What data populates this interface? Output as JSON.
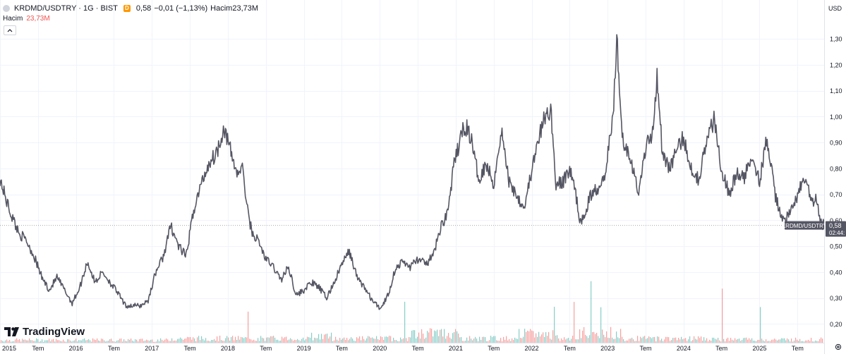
{
  "header": {
    "symbol": "KRDMD/USDTRY · 1G · BIST",
    "badge": "D",
    "last_price": "0,58",
    "change": "−0,01 (−1,13%)",
    "volume_label": "Hacim",
    "volume_value": "23,73M"
  },
  "volume_pane": {
    "label": "Hacim",
    "value": "23,73M"
  },
  "axis": {
    "unit": "USD"
  },
  "price_tag": {
    "symbol": "KRDMD/USDTRY",
    "value": "0,58",
    "countdown": "02:44:"
  },
  "watermark": "TradingView",
  "colors": {
    "line": "#555663",
    "volume_up": "#26a69a",
    "volume_down": "#ef5350",
    "grid": "#f0f3fa",
    "tag_bg": "#555663"
  },
  "chart_data": {
    "type": "line",
    "title": "KRDMD/USDTRY · 1G · BIST",
    "ylabel": "USD",
    "xlabel": "",
    "ylim": [
      0.16,
      1.36
    ],
    "xlim": [
      2015.0,
      2025.85
    ],
    "grid": true,
    "y_ticks": [
      {
        "value": 1.3,
        "label": "1,30"
      },
      {
        "value": 1.2,
        "label": "1,20"
      },
      {
        "value": 1.1,
        "label": "1,10"
      },
      {
        "value": 1.0,
        "label": "1,00"
      },
      {
        "value": 0.9,
        "label": "0,90"
      },
      {
        "value": 0.8,
        "label": "0,80"
      },
      {
        "value": 0.7,
        "label": "0,70"
      },
      {
        "value": 0.6,
        "label": "0,60"
      },
      {
        "value": 0.5,
        "label": "0,50"
      },
      {
        "value": 0.4,
        "label": "0,40"
      },
      {
        "value": 0.3,
        "label": "0,30"
      },
      {
        "value": 0.2,
        "label": "0,20"
      }
    ],
    "x_ticks": [
      {
        "value": 2015.0,
        "label": "2015"
      },
      {
        "value": 2015.5,
        "label": "Tem"
      },
      {
        "value": 2016.0,
        "label": "2016"
      },
      {
        "value": 2016.5,
        "label": "Tem"
      },
      {
        "value": 2017.0,
        "label": "2017"
      },
      {
        "value": 2017.5,
        "label": "Tem"
      },
      {
        "value": 2018.0,
        "label": "2018"
      },
      {
        "value": 2018.5,
        "label": "Tem"
      },
      {
        "value": 2019.0,
        "label": "2019"
      },
      {
        "value": 2019.5,
        "label": "Tem"
      },
      {
        "value": 2020.0,
        "label": "2020"
      },
      {
        "value": 2020.5,
        "label": "Tem"
      },
      {
        "value": 2021.0,
        "label": "2021"
      },
      {
        "value": 2021.5,
        "label": "Tem"
      },
      {
        "value": 2022.0,
        "label": "2022"
      },
      {
        "value": 2022.5,
        "label": "Tem"
      },
      {
        "value": 2023.0,
        "label": "2023"
      },
      {
        "value": 2023.5,
        "label": "Tem"
      },
      {
        "value": 2024.0,
        "label": "2024"
      },
      {
        "value": 2024.5,
        "label": "Tem"
      },
      {
        "value": 2025.0,
        "label": "2025"
      },
      {
        "value": 2025.5,
        "label": "Tem"
      }
    ],
    "series": [
      {
        "x": [
          2015.0,
          2015.08,
          2015.15,
          2015.25,
          2015.35,
          2015.45,
          2015.55,
          2015.65,
          2015.75,
          2015.85,
          2015.95,
          2016.05,
          2016.15,
          2016.25,
          2016.35,
          2016.45,
          2016.55,
          2016.65,
          2016.75,
          2016.85,
          2016.95,
          2017.05,
          2017.15,
          2017.25,
          2017.35,
          2017.45,
          2017.55,
          2017.65,
          2017.75,
          2017.85,
          2017.95,
          2018.05,
          2018.12,
          2018.2,
          2018.25,
          2018.32,
          2018.4,
          2018.5,
          2018.6,
          2018.7,
          2018.8,
          2018.9,
          2019.0,
          2019.1,
          2019.2,
          2019.3,
          2019.4,
          2019.5,
          2019.6,
          2019.7,
          2019.8,
          2019.9,
          2020.0,
          2020.05,
          2020.12,
          2020.2,
          2020.3,
          2020.4,
          2020.5,
          2020.6,
          2020.7,
          2020.8,
          2020.9,
          2020.97,
          2021.05,
          2021.12,
          2021.2,
          2021.3,
          2021.4,
          2021.5,
          2021.6,
          2021.7,
          2021.8,
          2021.9,
          2022.0,
          2022.07,
          2022.15,
          2022.25,
          2022.32,
          2022.4,
          2022.5,
          2022.58,
          2022.65,
          2022.72,
          2022.8,
          2022.88,
          2022.96,
          2023.05,
          2023.08,
          2023.12,
          2023.2,
          2023.3,
          2023.4,
          2023.5,
          2023.6,
          2023.65,
          2023.72,
          2023.8,
          2023.9,
          2024.0,
          2024.1,
          2024.2,
          2024.3,
          2024.4,
          2024.5,
          2024.6,
          2024.7,
          2024.8,
          2024.9,
          2025.0,
          2025.1,
          2025.2,
          2025.3,
          2025.4,
          2025.5,
          2025.6,
          2025.7,
          2025.75,
          2025.8,
          2025.85
        ],
        "y": [
          0.76,
          0.68,
          0.62,
          0.55,
          0.52,
          0.46,
          0.38,
          0.33,
          0.38,
          0.33,
          0.28,
          0.34,
          0.44,
          0.36,
          0.4,
          0.36,
          0.32,
          0.27,
          0.27,
          0.27,
          0.29,
          0.4,
          0.46,
          0.58,
          0.5,
          0.46,
          0.64,
          0.74,
          0.82,
          0.86,
          0.96,
          0.85,
          0.78,
          0.8,
          0.65,
          0.55,
          0.52,
          0.45,
          0.42,
          0.37,
          0.42,
          0.31,
          0.33,
          0.36,
          0.34,
          0.3,
          0.36,
          0.43,
          0.48,
          0.38,
          0.34,
          0.29,
          0.26,
          0.28,
          0.32,
          0.41,
          0.44,
          0.42,
          0.45,
          0.43,
          0.46,
          0.57,
          0.64,
          0.8,
          0.9,
          0.97,
          0.92,
          0.76,
          0.82,
          0.74,
          0.95,
          0.75,
          0.7,
          0.65,
          0.79,
          0.88,
          0.98,
          1.03,
          0.74,
          0.74,
          0.8,
          0.7,
          0.58,
          0.65,
          0.71,
          0.73,
          0.78,
          0.95,
          1.05,
          1.31,
          0.91,
          0.85,
          0.7,
          0.88,
          0.95,
          1.17,
          0.86,
          0.8,
          0.86,
          0.92,
          0.8,
          0.76,
          0.9,
          0.99,
          0.8,
          0.7,
          0.78,
          0.76,
          0.86,
          0.75,
          0.92,
          0.7,
          0.6,
          0.62,
          0.7,
          0.76,
          0.66,
          0.68,
          0.59,
          0.58
        ]
      }
    ],
    "volume": {
      "label": "Hacim",
      "last_value": "23,73M"
    },
    "last_value": 0.58
  }
}
